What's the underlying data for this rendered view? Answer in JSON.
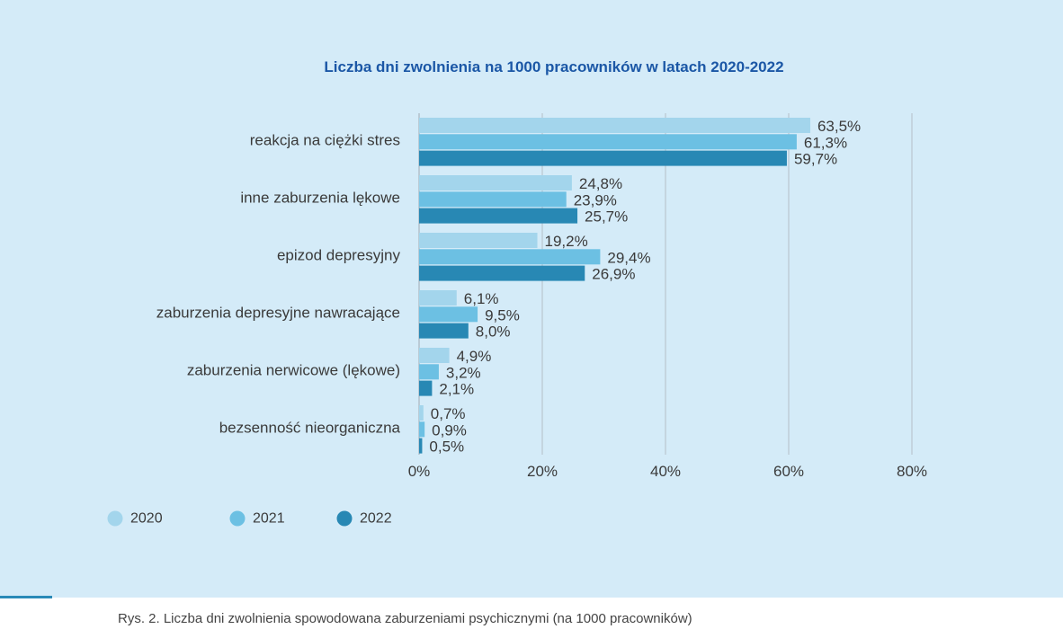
{
  "chart_data": {
    "type": "bar",
    "orientation": "horizontal",
    "title": "Liczba dni zwolnienia na 1000 pracowników w latach 2020-2022",
    "categories": [
      "reakcja na ciężki stres",
      "inne zaburzenia lękowe",
      "epizod depresyjny",
      "zaburzenia depresyjne nawracające",
      "zaburzenia nerwicowe (lękowe)",
      "bezsenność nieorganiczna"
    ],
    "series": [
      {
        "name": "2020",
        "color": "#a3d5ec",
        "values": [
          63.5,
          24.8,
          19.2,
          6.1,
          4.9,
          0.7
        ],
        "labels": [
          "63,5%",
          "24,8%",
          "19,2%",
          "6,1%",
          "4,9%",
          "0,7%"
        ]
      },
      {
        "name": "2021",
        "color": "#6cc0e3",
        "values": [
          61.3,
          23.9,
          29.4,
          9.5,
          3.2,
          0.9
        ],
        "labels": [
          "61,3%",
          "23,9%",
          "29,4%",
          "9,5%",
          "3,2%",
          "0,9%"
        ]
      },
      {
        "name": "2022",
        "color": "#2888b4",
        "values": [
          59.7,
          25.7,
          26.9,
          8.0,
          2.1,
          0.5
        ],
        "labels": [
          "59,7%",
          "25,7%",
          "26,9%",
          "8,0%",
          "2,1%",
          "0,5%"
        ]
      }
    ],
    "xlim": [
      0,
      80
    ],
    "xticks": [
      0,
      20,
      40,
      60,
      80
    ],
    "xtick_labels": [
      "0%",
      "20%",
      "40%",
      "60%",
      "80%"
    ],
    "grid": true,
    "legend_position": "bottom-left",
    "title_color": "#1b57a6",
    "grid_color": "#b9c6cf",
    "text_color": "#3a3a3a"
  },
  "caption": "Rys. 2. Liczba dni zwolnienia spowodowana zaburzeniami psychicznymi (na 1000 pracowników)"
}
